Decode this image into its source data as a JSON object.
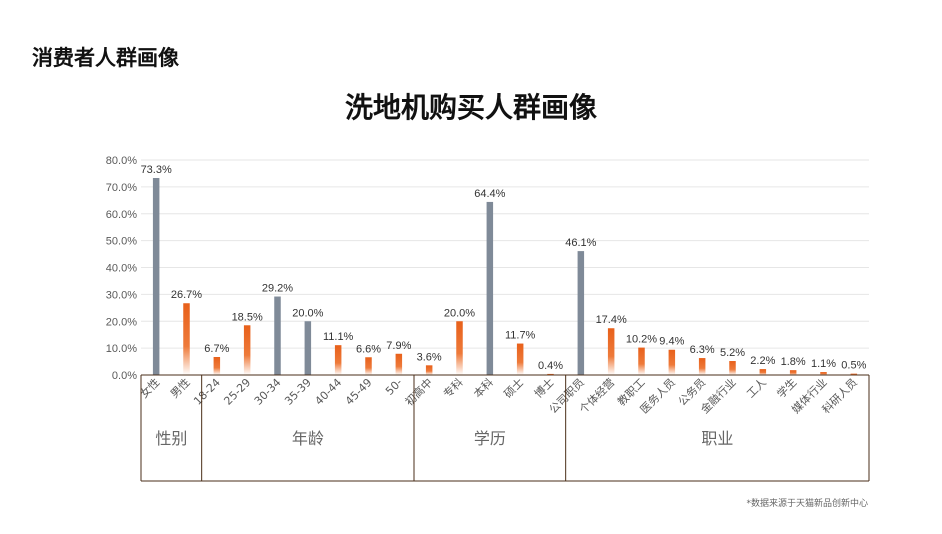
{
  "page": {
    "section_title": "消费者人群画像",
    "source_note": "*数据来源于天猫新品创新中心"
  },
  "chart_data": {
    "type": "bar",
    "title": "洗地机购买人群画像",
    "xlabel": "",
    "ylabel": "",
    "ylim": [
      0,
      80
    ],
    "ytick_values": [
      0,
      10,
      20,
      30,
      40,
      50,
      60,
      70,
      80
    ],
    "ytick_labels": [
      "0.0%",
      "10.0%",
      "20.0%",
      "30.0%",
      "40.0%",
      "50.0%",
      "60.0%",
      "70.0%",
      "80.0%"
    ],
    "grid": true,
    "legend": "none",
    "colors": {
      "highlight": "#7f8a98",
      "orange_top": "#e8601a",
      "orange_bottom": "#ffffff",
      "grid": "#e6e6e6",
      "frame": "#4a2e18"
    },
    "categories": [
      "女性",
      "男性",
      "18-24",
      "25-29",
      "30-34",
      "35-39",
      "40-44",
      "45-49",
      "50-",
      "初高中",
      "专科",
      "本科",
      "硕士",
      "博士",
      "公司职员",
      "个体经营",
      "教职工",
      "医务人员",
      "公务员",
      "金融行业",
      "工人",
      "学生",
      "媒体行业",
      "科研人员"
    ],
    "values": [
      73.3,
      26.7,
      6.7,
      18.5,
      29.2,
      20.0,
      11.1,
      6.6,
      7.9,
      3.6,
      20.0,
      64.4,
      11.7,
      0.4,
      46.1,
      17.4,
      10.2,
      9.4,
      6.3,
      5.2,
      2.2,
      1.8,
      1.1,
      0.5
    ],
    "value_labels": [
      "73.3%",
      "26.7%",
      "6.7%",
      "18.5%",
      "29.2%",
      "20.0%",
      "11.1%",
      "6.6%",
      "7.9%",
      "3.6%",
      "20.0%",
      "64.4%",
      "11.7%",
      "0.4%",
      "46.1%",
      "17.4%",
      "10.2%",
      "9.4%",
      "6.3%",
      "5.2%",
      "2.2%",
      "1.8%",
      "1.1%",
      "0.5%"
    ],
    "highlighted": [
      true,
      false,
      false,
      false,
      true,
      true,
      false,
      false,
      false,
      false,
      false,
      true,
      false,
      false,
      true,
      false,
      false,
      false,
      false,
      false,
      false,
      false,
      false,
      false
    ],
    "groups": [
      {
        "label": "性别",
        "count": 2
      },
      {
        "label": "年龄",
        "count": 7
      },
      {
        "label": "学历",
        "count": 5
      },
      {
        "label": "职业",
        "count": 10
      }
    ]
  }
}
